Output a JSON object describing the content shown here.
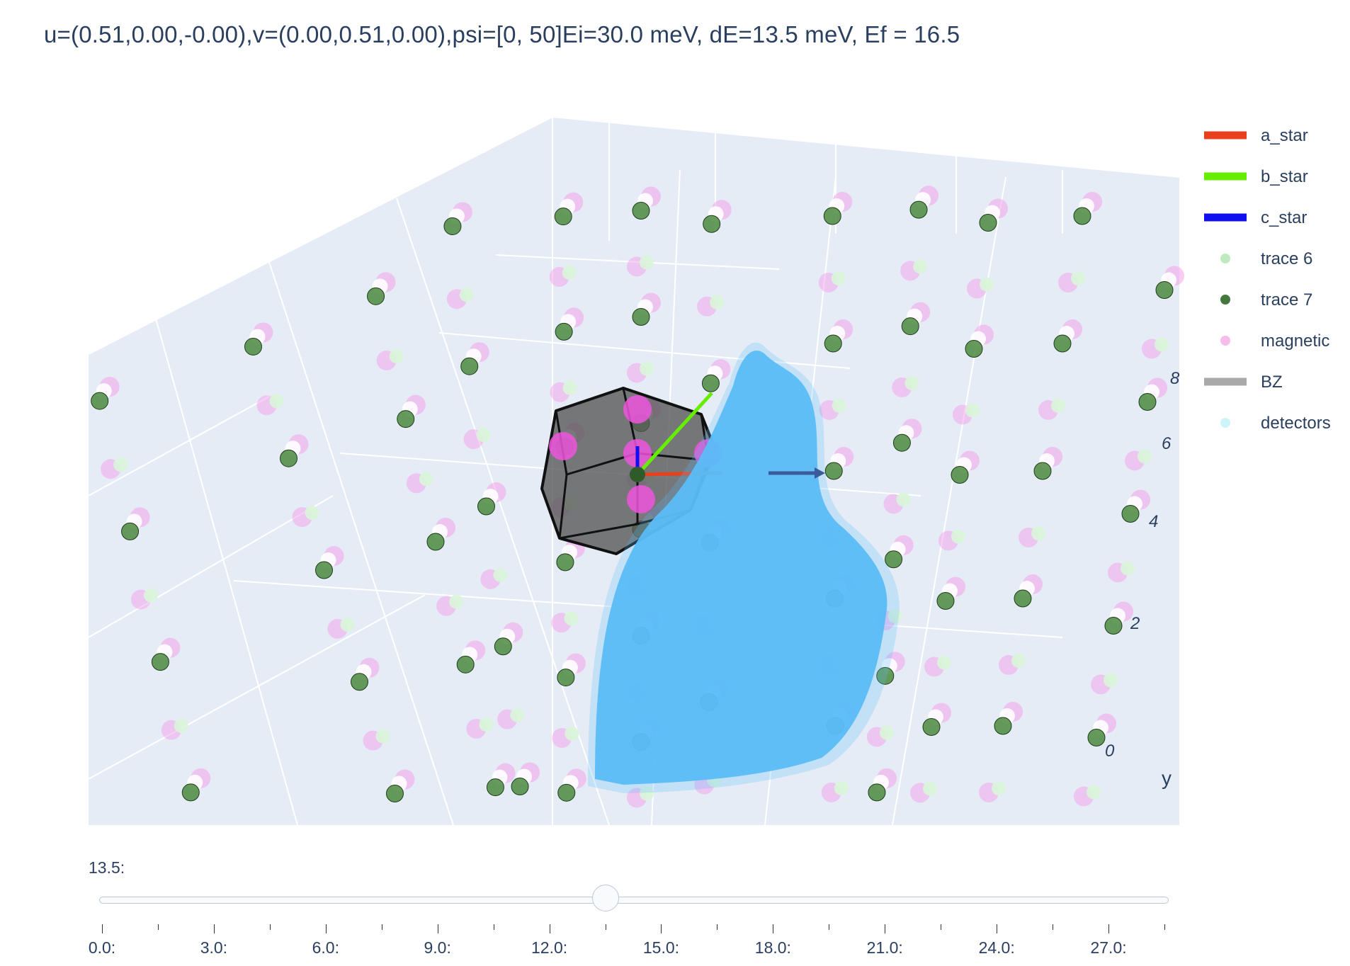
{
  "title": "u=(0.51,0.00,-0.00),v=(0.00,0.51,0.00),psi=[0, 50]Ei=30.0 meV, dE=13.5 meV, Ef = 16.5",
  "chart_data": {
    "type": "scatter",
    "scene": "3d",
    "y_axis": {
      "title": "y",
      "tick_labels": [
        "0",
        "2",
        "4",
        "6",
        "8"
      ]
    },
    "legend": {
      "placement": "top-right",
      "entries": [
        {
          "name": "a_star",
          "symbol": "line",
          "color": "#e8401c"
        },
        {
          "name": "b_star",
          "symbol": "line",
          "color": "#66ee00"
        },
        {
          "name": "c_star",
          "symbol": "line",
          "color": "#1010ee"
        },
        {
          "name": "trace 6",
          "symbol": "marker",
          "color": "#b8e8b8"
        },
        {
          "name": "trace 7",
          "symbol": "marker",
          "color": "#2f6a2a"
        },
        {
          "name": "magnetic",
          "symbol": "marker",
          "color": "#f5b5e8"
        },
        {
          "name": "BZ",
          "symbol": "line",
          "color": "#a9a9a9"
        },
        {
          "name": "detectors",
          "symbol": "marker",
          "color": "#c8f4f8"
        }
      ]
    },
    "colors": {
      "grid_background": "#e5ecf6",
      "detectors": "#5bbcf7",
      "trace7": "#4c8a3f",
      "trace6": "#d9f5d9",
      "magnetic": "#f59ae8",
      "magnetic_strong": "#ee55dd",
      "bz_fill": "#555555",
      "a_star": "#e8401c",
      "b_star": "#66ee00",
      "c_star": "#1010ee"
    }
  },
  "slider": {
    "current_label": "13.5:",
    "value": 13.5,
    "min": 0.0,
    "max": 28.5,
    "steps": [
      0,
      1.5,
      3,
      4.5,
      6,
      7.5,
      9,
      10.5,
      12,
      13.5,
      15,
      16.5,
      18,
      19.5,
      21,
      22.5,
      24,
      25.5,
      27,
      28.5
    ],
    "labels": [
      "0.0:",
      "3.0:",
      "6.0:",
      "9.0:",
      "12.0:",
      "15.0:",
      "18.0:",
      "21.0:",
      "24.0:",
      "27.0:"
    ]
  }
}
